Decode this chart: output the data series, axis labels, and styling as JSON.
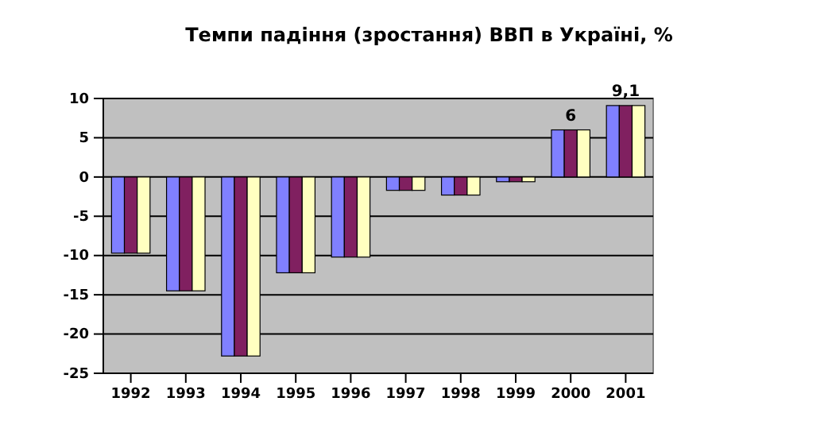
{
  "chart_data": {
    "type": "bar",
    "title": "Темпи падіння (зростання) ВВП в Україні, %",
    "categories": [
      "1992",
      "1993",
      "1994",
      "1995",
      "1996",
      "1997",
      "1998",
      "1999",
      "2000",
      "2001"
    ],
    "series": [
      {
        "color": "#8080ff",
        "values": [
          -9.7,
          -14.5,
          -22.8,
          -12.2,
          -10.2,
          -1.7,
          -2.3,
          -0.6,
          6,
          9.1
        ]
      },
      {
        "color": "#802060",
        "values": [
          -9.7,
          -14.5,
          -22.8,
          -12.2,
          -10.2,
          -1.7,
          -2.3,
          -0.6,
          6,
          9.1
        ],
        "value_labels": [
          null,
          null,
          null,
          null,
          null,
          null,
          null,
          null,
          "6",
          "9,1"
        ]
      },
      {
        "color": "#ffffc0",
        "values": [
          -9.7,
          -14.5,
          -22.8,
          -12.2,
          -10.2,
          -1.7,
          -2.3,
          -0.6,
          6,
          9.1
        ]
      }
    ],
    "ylim": [
      -25,
      10
    ],
    "yticks": [
      -25,
      -20,
      -15,
      -10,
      -5,
      0,
      5,
      10
    ],
    "grid": "y"
  }
}
